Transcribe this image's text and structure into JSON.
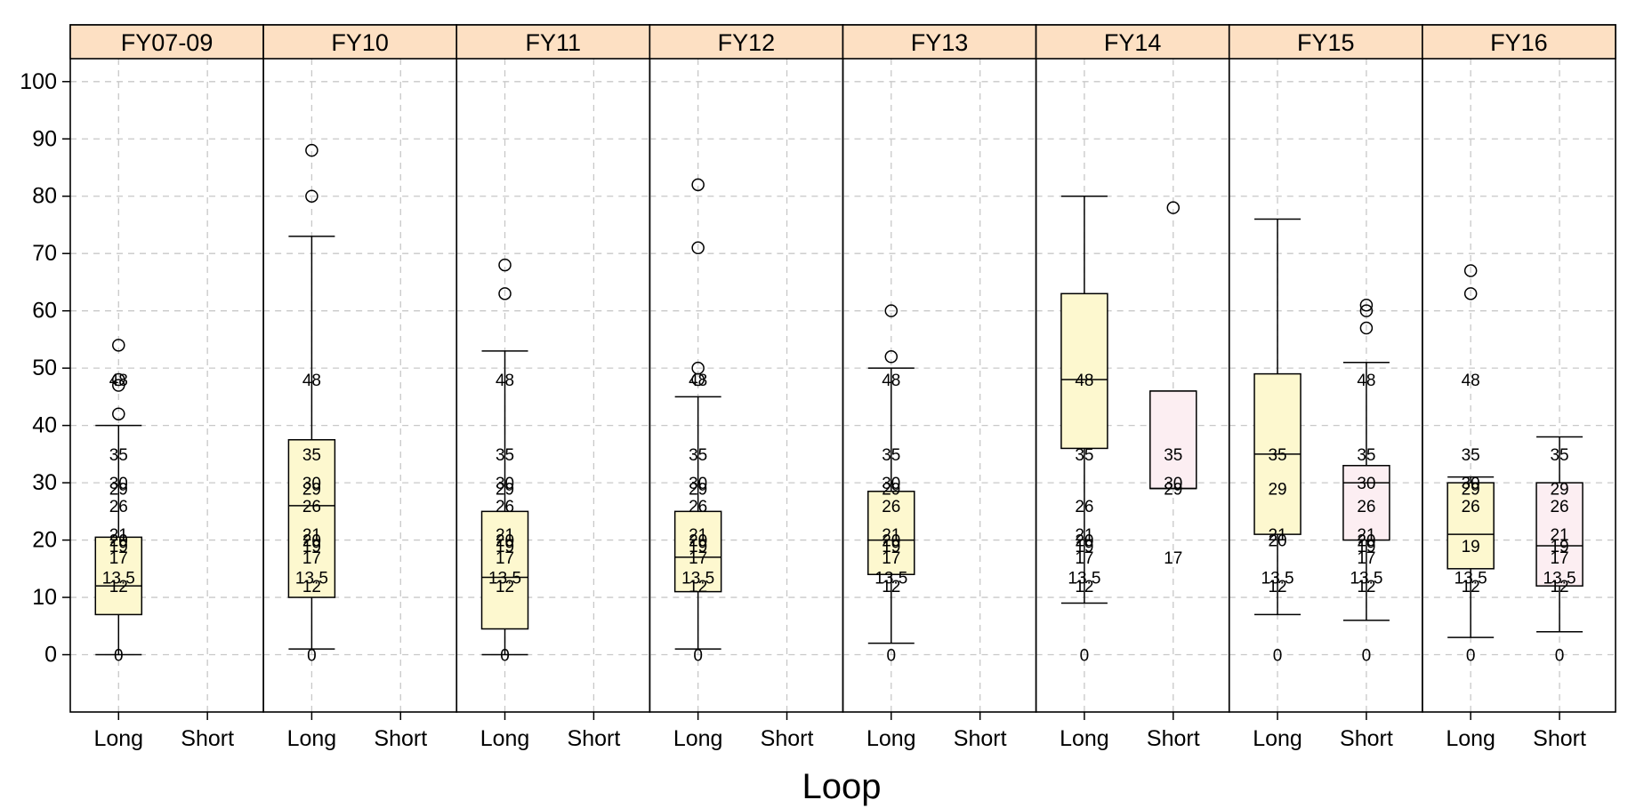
{
  "chart_data": {
    "type": "boxplot",
    "title": "",
    "xlabel": "Loop",
    "ylabel": "",
    "ylim": [
      -10,
      104
    ],
    "yticks": [
      0,
      10,
      20,
      30,
      40,
      50,
      60,
      70,
      80,
      90,
      100
    ],
    "grid": true,
    "categories": [
      "Long",
      "Short"
    ],
    "colors": {
      "Long": "#fdf8cf",
      "Short": "#fceef2",
      "strip": "#fde0c3",
      "grid": "#c8c8c8"
    },
    "panels": [
      {
        "name": "FY07-09",
        "boxes": [
          {
            "cat": "Long",
            "low": 0,
            "q1": 7,
            "median": 12,
            "q3": 20.5,
            "high": 40,
            "outliers": [
              42,
              47,
              48,
              54
            ],
            "labels": [
              0,
              12,
              13.5,
              17,
              19,
              20,
              21,
              26,
              29,
              30,
              35,
              48
            ]
          }
        ]
      },
      {
        "name": "FY10",
        "boxes": [
          {
            "cat": "Long",
            "low": 1,
            "q1": 10,
            "median": 26,
            "q3": 37.5,
            "high": 73,
            "outliers": [
              80,
              88
            ],
            "labels": [
              0,
              12,
              13.5,
              17,
              19,
              20,
              21,
              26,
              29,
              30,
              35,
              48
            ]
          }
        ]
      },
      {
        "name": "FY11",
        "boxes": [
          {
            "cat": "Long",
            "low": 0,
            "q1": 4.5,
            "median": 13.5,
            "q3": 25,
            "high": 53,
            "outliers": [
              63,
              68
            ],
            "labels": [
              0,
              12,
              13.5,
              17,
              19,
              20,
              21,
              26,
              29,
              30,
              35,
              48
            ]
          }
        ]
      },
      {
        "name": "FY12",
        "boxes": [
          {
            "cat": "Long",
            "low": 1,
            "q1": 11,
            "median": 17,
            "q3": 25,
            "high": 45,
            "outliers": [
              48,
              50,
              71,
              82
            ],
            "labels": [
              0,
              12,
              13.5,
              17,
              19,
              20,
              21,
              26,
              29,
              30,
              35,
              48
            ]
          }
        ]
      },
      {
        "name": "FY13",
        "boxes": [
          {
            "cat": "Long",
            "low": 2,
            "q1": 14,
            "median": 20,
            "q3": 28.5,
            "high": 50,
            "outliers": [
              52,
              60
            ],
            "labels": [
              0,
              12,
              13.5,
              17,
              19,
              20,
              21,
              26,
              29,
              30,
              35,
              48
            ]
          }
        ]
      },
      {
        "name": "FY14",
        "boxes": [
          {
            "cat": "Long",
            "low": 9,
            "q1": 36,
            "median": 48,
            "q3": 63,
            "high": 80,
            "outliers": [],
            "labels": [
              0,
              12,
              13.5,
              17,
              19,
              20,
              21,
              26,
              35,
              48
            ]
          },
          {
            "cat": "Short",
            "low": 29,
            "q1": 29,
            "median": 29,
            "q3": 46,
            "high": 46,
            "outliers": [
              78
            ],
            "labels": [
              17,
              29,
              30,
              35
            ]
          }
        ]
      },
      {
        "name": "FY15",
        "boxes": [
          {
            "cat": "Long",
            "low": 7,
            "q1": 21,
            "median": 35,
            "q3": 49,
            "high": 76,
            "outliers": [],
            "labels": [
              0,
              12,
              13.5,
              20,
              21,
              29,
              35
            ]
          },
          {
            "cat": "Short",
            "low": 6,
            "q1": 20,
            "median": 30,
            "q3": 33,
            "high": 51,
            "outliers": [
              57,
              60,
              61
            ],
            "labels": [
              0,
              12,
              13.5,
              17,
              19,
              20,
              21,
              26,
              30,
              35,
              48
            ]
          }
        ]
      },
      {
        "name": "FY16",
        "boxes": [
          {
            "cat": "Long",
            "low": 3,
            "q1": 15,
            "median": 21,
            "q3": 30,
            "high": 31,
            "outliers": [
              63,
              67
            ],
            "labels": [
              0,
              12,
              13.5,
              19,
              26,
              29,
              30,
              35,
              48
            ]
          },
          {
            "cat": "Short",
            "low": 4,
            "q1": 12,
            "median": 19,
            "q3": 30,
            "high": 38,
            "outliers": [],
            "labels": [
              0,
              12,
              13.5,
              17,
              19,
              21,
              26,
              29,
              35
            ]
          }
        ]
      }
    ]
  }
}
